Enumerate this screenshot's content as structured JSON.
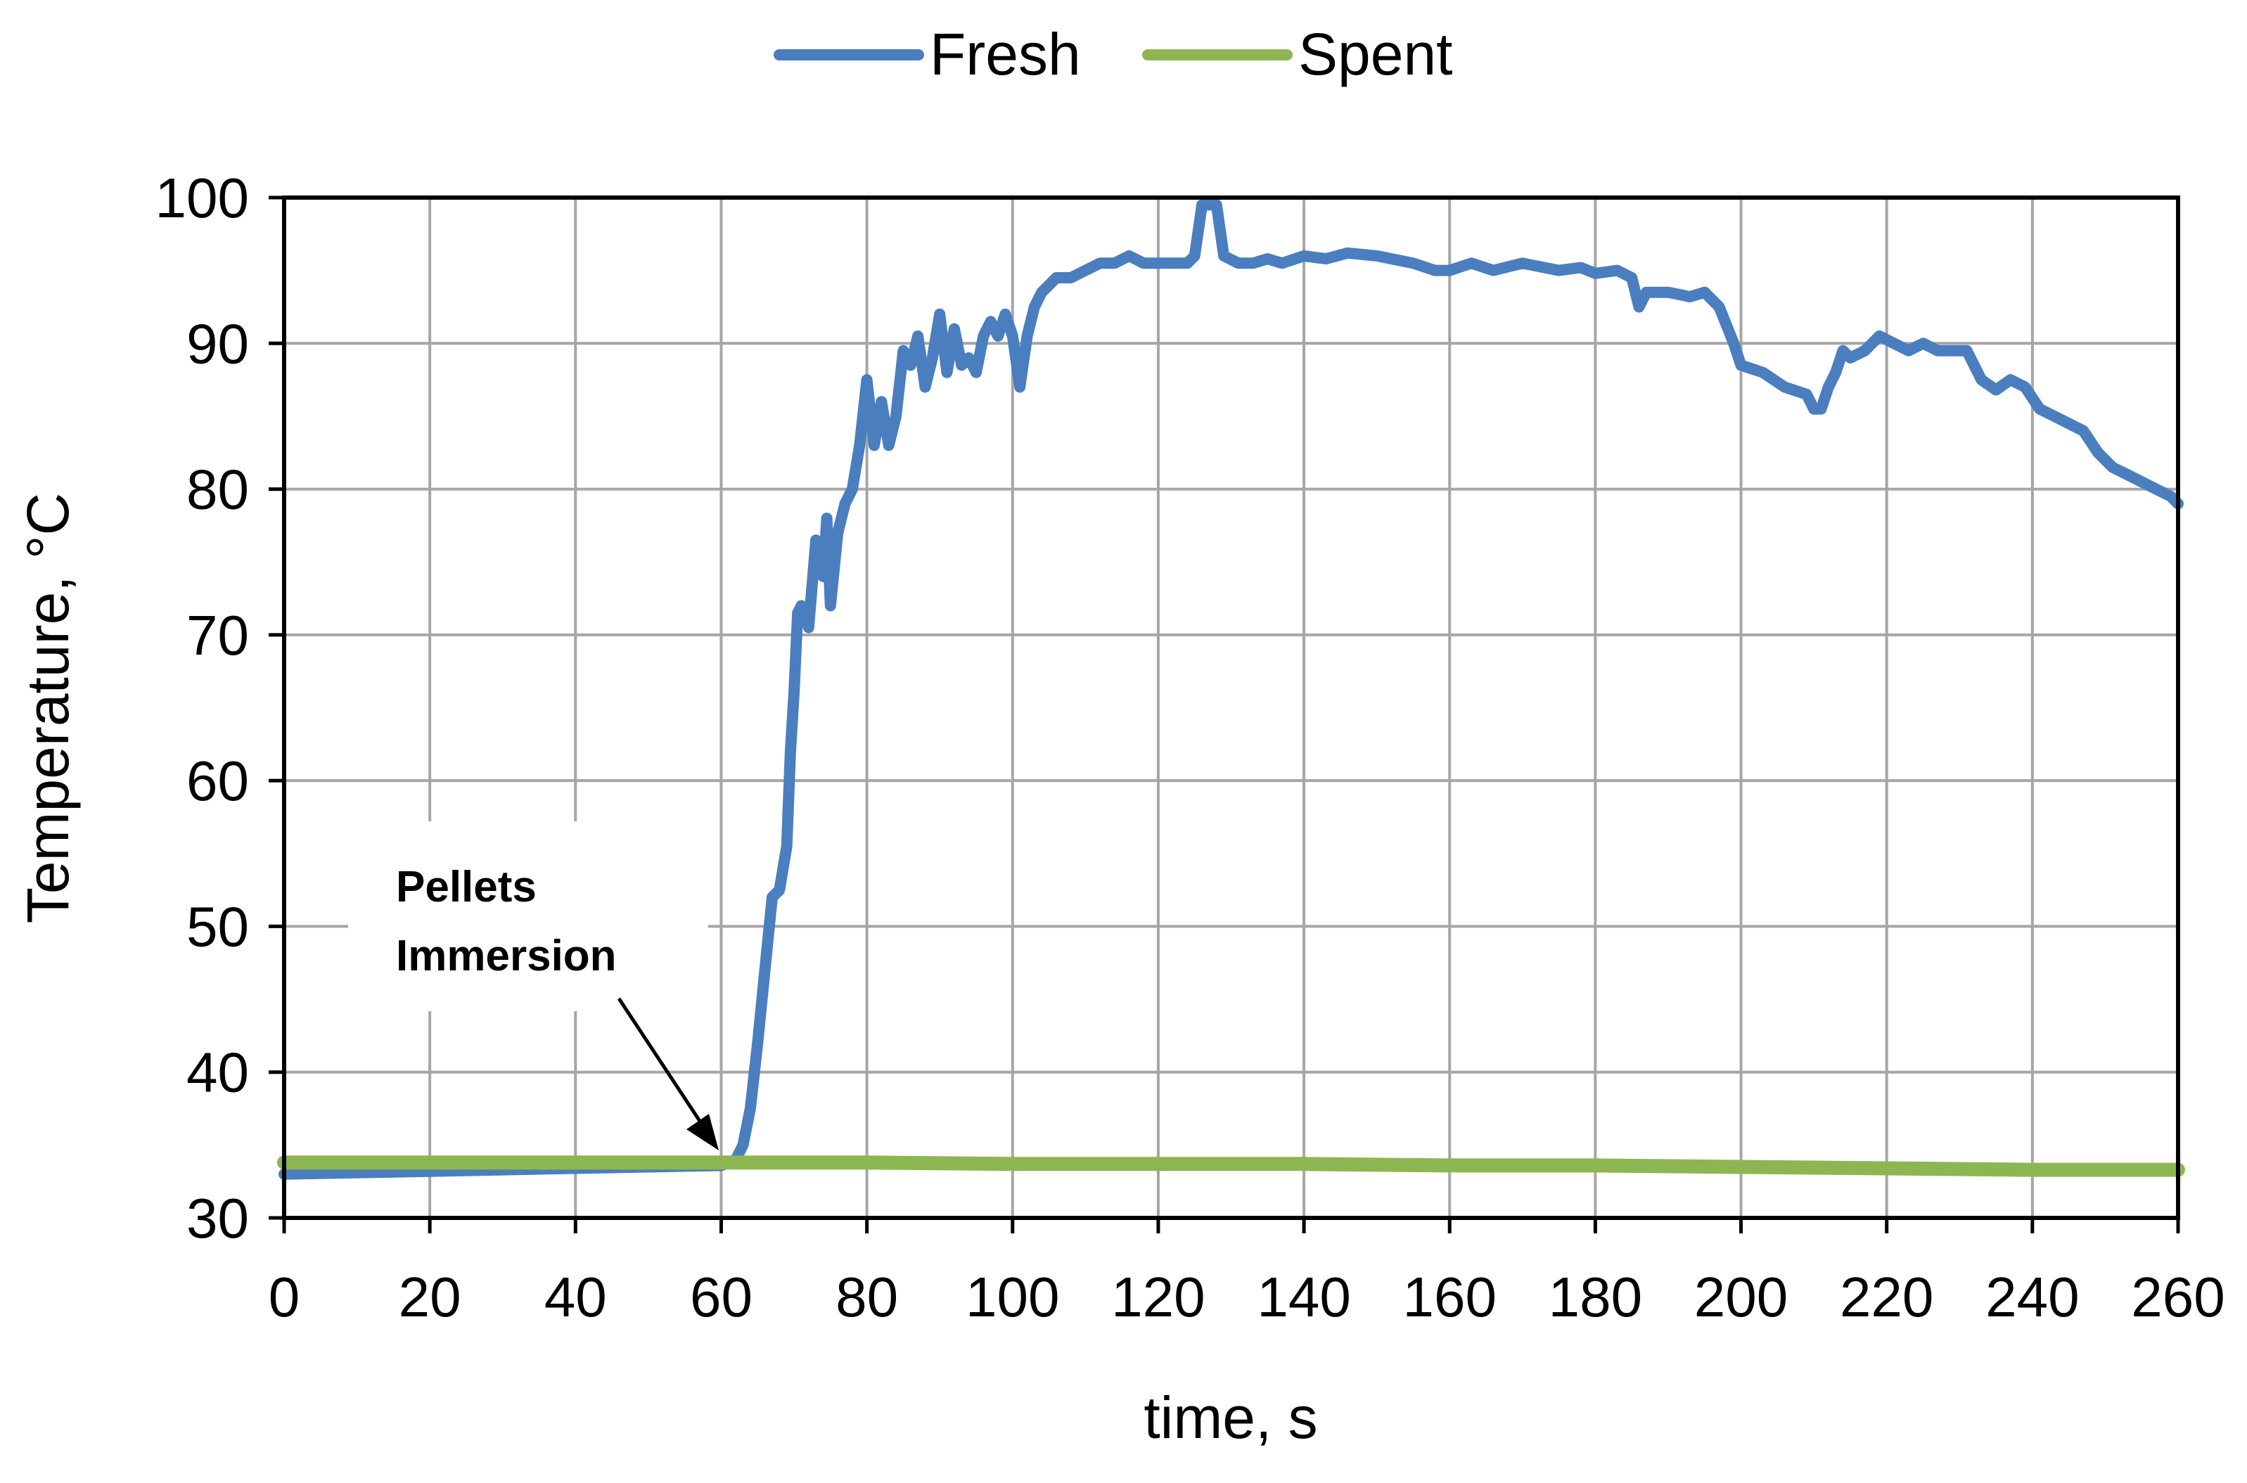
{
  "colors": {
    "fresh": "#4a7ebf",
    "spent": "#8db652",
    "grid": "#a6a6a6",
    "frame": "#000000"
  },
  "chart_data": {
    "type": "line",
    "title": "",
    "xlabel": "time, s",
    "ylabel": "Temperature, °C",
    "xlim": [
      0,
      260
    ],
    "ylim": [
      30,
      100
    ],
    "grid": true,
    "legend_position": "top-center",
    "x_ticks": [
      {
        "value": 0,
        "label": "0"
      },
      {
        "value": 20,
        "label": "20"
      },
      {
        "value": 40,
        "label": "40"
      },
      {
        "value": 60,
        "label": "60"
      },
      {
        "value": 80,
        "label": "80"
      },
      {
        "value": 100,
        "label": "100"
      },
      {
        "value": 120,
        "label": "120"
      },
      {
        "value": 140,
        "label": "140"
      },
      {
        "value": 160,
        "label": "160"
      },
      {
        "value": 180,
        "label": "180"
      },
      {
        "value": 200,
        "label": "200"
      },
      {
        "value": 220,
        "label": "220"
      },
      {
        "value": 240,
        "label": "240"
      },
      {
        "value": 260,
        "label": "260"
      }
    ],
    "y_ticks": [
      {
        "value": 30,
        "label": "30"
      },
      {
        "value": 40,
        "label": "40"
      },
      {
        "value": 50,
        "label": "50"
      },
      {
        "value": 60,
        "label": "60"
      },
      {
        "value": 70,
        "label": "70"
      },
      {
        "value": 80,
        "label": "80"
      },
      {
        "value": 90,
        "label": "90"
      },
      {
        "value": 100,
        "label": "100"
      }
    ],
    "annotation": {
      "lines": [
        "Pellets",
        "Immersion"
      ],
      "target": {
        "x": 60,
        "y": 34
      }
    },
    "series": [
      {
        "name": "Fresh",
        "color": "#4a7ebf",
        "points": [
          [
            0,
            33.0
          ],
          [
            10,
            33.1
          ],
          [
            20,
            33.2
          ],
          [
            30,
            33.3
          ],
          [
            40,
            33.4
          ],
          [
            50,
            33.5
          ],
          [
            60,
            33.6
          ],
          [
            62,
            34.0
          ],
          [
            63,
            35.0
          ],
          [
            64,
            37.5
          ],
          [
            65,
            42.0
          ],
          [
            66,
            47.0
          ],
          [
            67,
            52.0
          ],
          [
            68,
            52.5
          ],
          [
            69,
            55.5
          ],
          [
            69.5,
            62.0
          ],
          [
            70,
            66.0
          ],
          [
            70.5,
            71.5
          ],
          [
            71,
            72.0
          ],
          [
            72,
            70.5
          ],
          [
            73,
            76.5
          ],
          [
            74,
            74.0
          ],
          [
            74.5,
            78.0
          ],
          [
            75,
            72.0
          ],
          [
            76,
            77.0
          ],
          [
            77,
            79.0
          ],
          [
            78,
            80.0
          ],
          [
            79,
            83.0
          ],
          [
            80,
            87.5
          ],
          [
            81,
            83.0
          ],
          [
            82,
            86.0
          ],
          [
            83,
            83.0
          ],
          [
            84,
            85.0
          ],
          [
            85,
            89.5
          ],
          [
            86,
            88.5
          ],
          [
            87,
            90.5
          ],
          [
            88,
            87.0
          ],
          [
            89,
            89.0
          ],
          [
            90,
            92.0
          ],
          [
            91,
            88.0
          ],
          [
            92,
            91.0
          ],
          [
            93,
            88.5
          ],
          [
            94,
            89.0
          ],
          [
            95,
            88.0
          ],
          [
            96,
            90.5
          ],
          [
            97,
            91.5
          ],
          [
            98,
            90.5
          ],
          [
            99,
            92.0
          ],
          [
            100,
            90.5
          ],
          [
            101,
            87.0
          ],
          [
            102,
            90.5
          ],
          [
            103,
            92.5
          ],
          [
            104,
            93.5
          ],
          [
            105,
            94.0
          ],
          [
            106,
            94.5
          ],
          [
            108,
            94.5
          ],
          [
            110,
            95.0
          ],
          [
            112,
            95.5
          ],
          [
            114,
            95.5
          ],
          [
            116,
            96.0
          ],
          [
            118,
            95.5
          ],
          [
            120,
            95.5
          ],
          [
            122,
            95.5
          ],
          [
            124,
            95.5
          ],
          [
            125,
            96.0
          ],
          [
            126,
            99.5
          ],
          [
            128,
            99.5
          ],
          [
            129,
            96.0
          ],
          [
            131,
            95.5
          ],
          [
            133,
            95.5
          ],
          [
            135,
            95.8
          ],
          [
            137,
            95.5
          ],
          [
            140,
            96.0
          ],
          [
            143,
            95.8
          ],
          [
            146,
            96.2
          ],
          [
            150,
            96.0
          ],
          [
            155,
            95.5
          ],
          [
            158,
            95.0
          ],
          [
            160,
            95.0
          ],
          [
            163,
            95.5
          ],
          [
            166,
            95.0
          ],
          [
            170,
            95.5
          ],
          [
            175,
            95.0
          ],
          [
            178,
            95.2
          ],
          [
            180,
            94.8
          ],
          [
            183,
            95.0
          ],
          [
            185,
            94.5
          ],
          [
            186,
            92.5
          ],
          [
            187,
            93.5
          ],
          [
            190,
            93.5
          ],
          [
            193,
            93.2
          ],
          [
            195,
            93.5
          ],
          [
            197,
            92.5
          ],
          [
            199,
            90.0
          ],
          [
            200,
            88.5
          ],
          [
            203,
            88.0
          ],
          [
            206,
            87.0
          ],
          [
            209,
            86.5
          ],
          [
            210,
            85.5
          ],
          [
            211,
            85.5
          ],
          [
            212,
            87.0
          ],
          [
            213,
            88.0
          ],
          [
            214,
            89.5
          ],
          [
            215,
            89.0
          ],
          [
            217,
            89.5
          ],
          [
            219,
            90.5
          ],
          [
            221,
            90.0
          ],
          [
            223,
            89.5
          ],
          [
            225,
            90.0
          ],
          [
            227,
            89.5
          ],
          [
            229,
            89.5
          ],
          [
            231,
            89.5
          ],
          [
            233,
            87.5
          ],
          [
            235,
            86.8
          ],
          [
            237,
            87.5
          ],
          [
            239,
            87.0
          ],
          [
            241,
            85.5
          ],
          [
            243,
            85.0
          ],
          [
            245,
            84.5
          ],
          [
            247,
            84.0
          ],
          [
            249,
            82.5
          ],
          [
            251,
            81.5
          ],
          [
            253,
            81.0
          ],
          [
            255,
            80.5
          ],
          [
            257,
            80.0
          ],
          [
            259,
            79.5
          ],
          [
            260,
            79.0
          ]
        ]
      },
      {
        "name": "Spent",
        "color": "#8db652",
        "points": [
          [
            0,
            33.8
          ],
          [
            20,
            33.8
          ],
          [
            40,
            33.8
          ],
          [
            60,
            33.8
          ],
          [
            80,
            33.8
          ],
          [
            100,
            33.7
          ],
          [
            120,
            33.7
          ],
          [
            140,
            33.7
          ],
          [
            160,
            33.6
          ],
          [
            180,
            33.6
          ],
          [
            200,
            33.5
          ],
          [
            220,
            33.4
          ],
          [
            240,
            33.3
          ],
          [
            260,
            33.3
          ]
        ]
      }
    ]
  }
}
